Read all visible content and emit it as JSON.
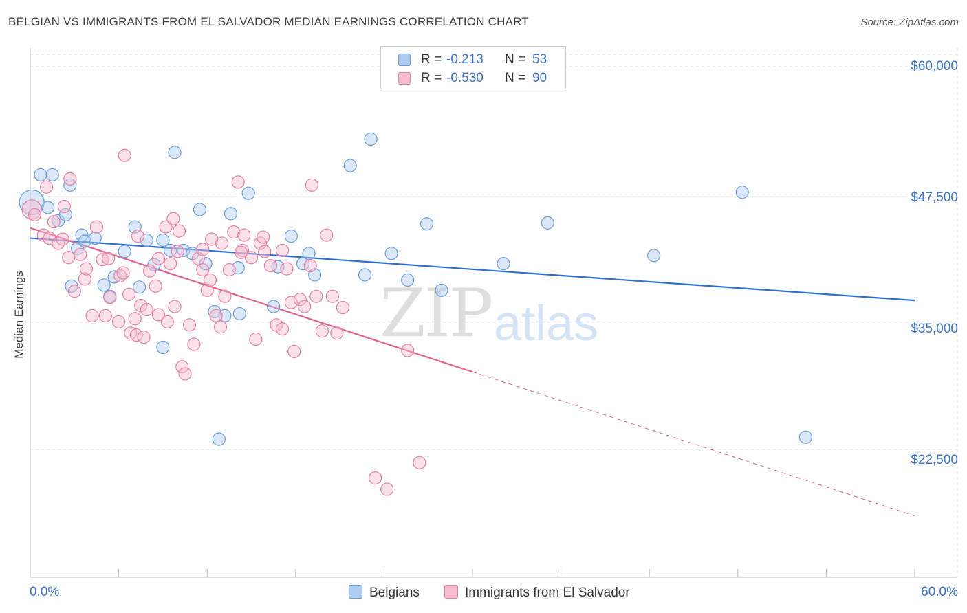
{
  "title": "BELGIAN VS IMMIGRANTS FROM EL SALVADOR MEDIAN EARNINGS CORRELATION CHART",
  "source": "Source: ZipAtlas.com",
  "watermark": {
    "zip": "ZIP",
    "atlas": "atlas"
  },
  "legend": {
    "r_label": "R =",
    "n_label": "N =",
    "rows": [
      {
        "r": "-0.213",
        "n": "53"
      },
      {
        "r": "-0.530",
        "n": "90"
      }
    ]
  },
  "colors": {
    "blue_fill": "#aecbf2",
    "blue_stroke": "#6b9bd8",
    "blue_line": "#2f6fcd",
    "pink_fill": "#f7bcd0",
    "pink_stroke": "#e77fa2",
    "pink_line": "#e0628c",
    "tick_text": "#3a73c8",
    "grid": "#dddddd"
  },
  "chart_data": {
    "type": "scatter",
    "title": "BELGIAN VS IMMIGRANTS FROM EL SALVADOR MEDIAN EARNINGS CORRELATION CHART",
    "xlabel": "",
    "ylabel": "Median Earnings",
    "xlim": [
      0,
      60
    ],
    "ylim": [
      11000,
      61500
    ],
    "x_tick_labels": [
      "0.0%",
      "60.0%"
    ],
    "y_ticks": [
      22500,
      35000,
      47500,
      60000
    ],
    "y_tick_labels": [
      "$22,500",
      "$35,000",
      "$47,500",
      "$60,000"
    ],
    "grid": true,
    "series": [
      {
        "name": "Belgians",
        "regression": {
          "x": [
            0,
            60
          ],
          "y": [
            43200,
            37100
          ],
          "dashed_from": null
        },
        "points": [
          [
            0.1,
            46700
          ],
          [
            0.7,
            49400
          ],
          [
            1.2,
            46200
          ],
          [
            1.5,
            49400
          ],
          [
            1.9,
            44900
          ],
          [
            2.4,
            45500
          ],
          [
            2.7,
            48400
          ],
          [
            2.8,
            38500
          ],
          [
            3.2,
            42200
          ],
          [
            3.5,
            43500
          ],
          [
            3.7,
            42900
          ],
          [
            4.4,
            43200
          ],
          [
            5.0,
            38600
          ],
          [
            5.4,
            37500
          ],
          [
            5.7,
            39400
          ],
          [
            6.4,
            41900
          ],
          [
            7.1,
            44300
          ],
          [
            7.4,
            38400
          ],
          [
            7.9,
            43000
          ],
          [
            8.4,
            40600
          ],
          [
            9.0,
            43000
          ],
          [
            9.0,
            32500
          ],
          [
            9.5,
            42000
          ],
          [
            9.8,
            51600
          ],
          [
            10.4,
            42000
          ],
          [
            11.0,
            41700
          ],
          [
            11.5,
            46000
          ],
          [
            11.9,
            40700
          ],
          [
            12.5,
            36000
          ],
          [
            12.8,
            23500
          ],
          [
            13.2,
            35600
          ],
          [
            13.6,
            45600
          ],
          [
            14.1,
            40300
          ],
          [
            14.2,
            35800
          ],
          [
            14.8,
            47600
          ],
          [
            16.5,
            36500
          ],
          [
            16.8,
            40400
          ],
          [
            17.7,
            43400
          ],
          [
            18.5,
            40700
          ],
          [
            18.9,
            41700
          ],
          [
            19.3,
            39600
          ],
          [
            21.7,
            50300
          ],
          [
            22.7,
            39600
          ],
          [
            23.1,
            52900
          ],
          [
            24.5,
            41700
          ],
          [
            25.6,
            39100
          ],
          [
            26.9,
            44600
          ],
          [
            27.9,
            38100
          ],
          [
            32.1,
            40700
          ],
          [
            35.1,
            44700
          ],
          [
            42.3,
            41500
          ],
          [
            48.3,
            47700
          ],
          [
            52.6,
            23700
          ]
        ]
      },
      {
        "name": "Immigrants from El Salvador",
        "regression": {
          "x": [
            0,
            60
          ],
          "y": [
            44200,
            16000
          ],
          "dashed_from": 30
        },
        "points": [
          [
            0.1,
            46000
          ],
          [
            0.3,
            45500
          ],
          [
            0.9,
            43500
          ],
          [
            1.1,
            48200
          ],
          [
            1.3,
            43200
          ],
          [
            1.6,
            44800
          ],
          [
            1.9,
            42700
          ],
          [
            2.3,
            46300
          ],
          [
            2.6,
            41300
          ],
          [
            2.7,
            49000
          ],
          [
            3.0,
            38000
          ],
          [
            3.4,
            41600
          ],
          [
            3.7,
            39200
          ],
          [
            3.8,
            40200
          ],
          [
            4.2,
            35600
          ],
          [
            4.5,
            44300
          ],
          [
            4.9,
            41100
          ],
          [
            5.1,
            35600
          ],
          [
            5.4,
            37400
          ],
          [
            6.0,
            35000
          ],
          [
            6.1,
            39500
          ],
          [
            6.3,
            39800
          ],
          [
            6.4,
            51300
          ],
          [
            6.8,
            33900
          ],
          [
            7.2,
            33700
          ],
          [
            7.3,
            43400
          ],
          [
            7.5,
            36600
          ],
          [
            7.7,
            33500
          ],
          [
            7.9,
            36200
          ],
          [
            8.1,
            40000
          ],
          [
            8.5,
            38500
          ],
          [
            8.7,
            41200
          ],
          [
            9.2,
            44300
          ],
          [
            9.3,
            35000
          ],
          [
            9.7,
            45100
          ],
          [
            9.8,
            36500
          ],
          [
            10.1,
            43900
          ],
          [
            10.3,
            30600
          ],
          [
            10.5,
            29900
          ],
          [
            10.8,
            34700
          ],
          [
            11.1,
            32800
          ],
          [
            11.4,
            41200
          ],
          [
            11.7,
            40100
          ],
          [
            12.0,
            38100
          ],
          [
            12.3,
            43100
          ],
          [
            12.6,
            35600
          ],
          [
            12.9,
            34500
          ],
          [
            13.2,
            37500
          ],
          [
            13.5,
            40100
          ],
          [
            13.8,
            43800
          ],
          [
            14.1,
            48700
          ],
          [
            14.4,
            42000
          ],
          [
            14.5,
            43500
          ],
          [
            15.0,
            41300
          ],
          [
            15.3,
            33300
          ],
          [
            15.6,
            42700
          ],
          [
            15.9,
            41900
          ],
          [
            16.3,
            40500
          ],
          [
            16.7,
            34700
          ],
          [
            17.1,
            34300
          ],
          [
            17.4,
            40200
          ],
          [
            17.7,
            36900
          ],
          [
            17.9,
            32100
          ],
          [
            18.3,
            37200
          ],
          [
            18.6,
            36500
          ],
          [
            19.1,
            48400
          ],
          [
            19.4,
            37500
          ],
          [
            19.8,
            34100
          ],
          [
            20.1,
            43500
          ],
          [
            20.5,
            37500
          ],
          [
            20.8,
            33900
          ],
          [
            21.2,
            36400
          ],
          [
            23.4,
            19700
          ],
          [
            24.2,
            18600
          ],
          [
            25.6,
            32200
          ],
          [
            26.4,
            21200
          ],
          [
            2.2,
            43100
          ],
          [
            5.3,
            41200
          ],
          [
            6.7,
            37700
          ],
          [
            8.7,
            35700
          ],
          [
            10.0,
            41900
          ],
          [
            11.7,
            42100
          ],
          [
            13.0,
            42700
          ],
          [
            14.3,
            41800
          ],
          [
            15.8,
            43300
          ],
          [
            17.1,
            42000
          ],
          [
            19.0,
            40500
          ],
          [
            9.5,
            40700
          ],
          [
            7.1,
            35300
          ],
          [
            12.2,
            39100
          ]
        ]
      }
    ]
  },
  "bottom_legend": [
    "Belgians",
    "Immigrants from El Salvador"
  ]
}
